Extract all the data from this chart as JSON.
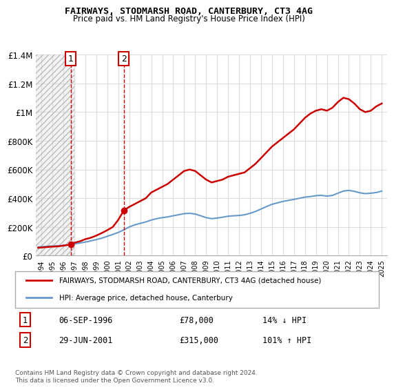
{
  "title": "FAIRWAYS, STODMARSH ROAD, CANTERBURY, CT3 4AG",
  "subtitle": "Price paid vs. HM Land Registry's House Price Index (HPI)",
  "legend_line1": "FAIRWAYS, STODMARSH ROAD, CANTERBURY, CT3 4AG (detached house)",
  "legend_line2": "HPI: Average price, detached house, Canterbury",
  "annotation1_label": "1",
  "annotation1_date": "06-SEP-1996",
  "annotation1_price": "£78,000",
  "annotation1_hpi": "14% ↓ HPI",
  "annotation2_label": "2",
  "annotation2_date": "29-JUN-2001",
  "annotation2_price": "£315,000",
  "annotation2_hpi": "101% ↑ HPI",
  "footnote": "Contains HM Land Registry data © Crown copyright and database right 2024.\nThis data is licensed under the Open Government Licence v3.0.",
  "point1_x": 1996.67,
  "point1_y": 78000,
  "point2_x": 2001.5,
  "point2_y": 315000,
  "red_line_color": "#cc0000",
  "blue_line_color": "#6699cc",
  "hatch_color": "#cccccc",
  "grid_color": "#dddddd",
  "ylim": [
    0,
    1400000
  ],
  "xlim": [
    1993.5,
    2025.5
  ],
  "yticks": [
    0,
    200000,
    400000,
    600000,
    800000,
    1000000,
    1200000,
    1400000
  ],
  "ytick_labels": [
    "£0",
    "£200K",
    "£400K",
    "£600K",
    "£800K",
    "£1M",
    "£1.2M",
    "£1.4M"
  ],
  "xticks": [
    1994,
    1995,
    1996,
    1997,
    1998,
    1999,
    2000,
    2001,
    2002,
    2003,
    2004,
    2005,
    2006,
    2007,
    2008,
    2009,
    2010,
    2011,
    2012,
    2013,
    2014,
    2015,
    2016,
    2017,
    2018,
    2019,
    2020,
    2021,
    2022,
    2023,
    2024,
    2025
  ],
  "red_x": [
    1993.7,
    1994.0,
    1994.5,
    1995.0,
    1995.5,
    1996.0,
    1996.67,
    1997.0,
    1997.5,
    1998.0,
    1998.5,
    1999.0,
    1999.5,
    2000.0,
    2000.5,
    2001.0,
    2001.5,
    2002.0,
    2002.5,
    2003.0,
    2003.5,
    2004.0,
    2004.5,
    2005.0,
    2005.5,
    2006.0,
    2006.5,
    2007.0,
    2007.5,
    2008.0,
    2008.5,
    2009.0,
    2009.5,
    2010.0,
    2010.5,
    2011.0,
    2011.5,
    2012.0,
    2012.5,
    2013.0,
    2013.5,
    2014.0,
    2014.5,
    2015.0,
    2015.5,
    2016.0,
    2016.5,
    2017.0,
    2017.5,
    2018.0,
    2018.5,
    2019.0,
    2019.5,
    2020.0,
    2020.5,
    2021.0,
    2021.5,
    2022.0,
    2022.5,
    2023.0,
    2023.5,
    2024.0,
    2024.5,
    2025.0
  ],
  "red_y": [
    55000,
    57000,
    60000,
    63000,
    65000,
    70000,
    78000,
    90000,
    100000,
    115000,
    125000,
    140000,
    158000,
    178000,
    200000,
    250000,
    315000,
    340000,
    360000,
    380000,
    400000,
    440000,
    460000,
    480000,
    500000,
    530000,
    560000,
    590000,
    600000,
    590000,
    560000,
    530000,
    510000,
    520000,
    530000,
    550000,
    560000,
    570000,
    580000,
    610000,
    640000,
    680000,
    720000,
    760000,
    790000,
    820000,
    850000,
    880000,
    920000,
    960000,
    990000,
    1010000,
    1020000,
    1010000,
    1030000,
    1070000,
    1100000,
    1090000,
    1060000,
    1020000,
    1000000,
    1010000,
    1040000,
    1060000
  ],
  "blue_x": [
    1993.7,
    1994.0,
    1994.5,
    1995.0,
    1995.5,
    1996.0,
    1996.67,
    1997.0,
    1997.5,
    1998.0,
    1998.5,
    1999.0,
    1999.5,
    2000.0,
    2000.5,
    2001.0,
    2001.5,
    2002.0,
    2002.5,
    2003.0,
    2003.5,
    2004.0,
    2004.5,
    2005.0,
    2005.5,
    2006.0,
    2006.5,
    2007.0,
    2007.5,
    2008.0,
    2008.5,
    2009.0,
    2009.5,
    2010.0,
    2010.5,
    2011.0,
    2011.5,
    2012.0,
    2012.5,
    2013.0,
    2013.5,
    2014.0,
    2014.5,
    2015.0,
    2015.5,
    2016.0,
    2016.5,
    2017.0,
    2017.5,
    2018.0,
    2018.5,
    2019.0,
    2019.5,
    2020.0,
    2020.5,
    2021.0,
    2021.5,
    2022.0,
    2022.5,
    2023.0,
    2023.5,
    2024.0,
    2024.5,
    2025.0
  ],
  "blue_y": [
    60000,
    62000,
    65000,
    67000,
    69000,
    72000,
    76000,
    82000,
    88000,
    95000,
    103000,
    112000,
    122000,
    135000,
    148000,
    162000,
    180000,
    200000,
    215000,
    225000,
    235000,
    248000,
    258000,
    265000,
    270000,
    278000,
    285000,
    293000,
    295000,
    290000,
    278000,
    265000,
    258000,
    262000,
    268000,
    275000,
    278000,
    280000,
    285000,
    295000,
    308000,
    325000,
    342000,
    358000,
    368000,
    378000,
    385000,
    392000,
    400000,
    408000,
    412000,
    418000,
    420000,
    415000,
    420000,
    435000,
    450000,
    455000,
    448000,
    438000,
    432000,
    435000,
    440000,
    450000
  ]
}
